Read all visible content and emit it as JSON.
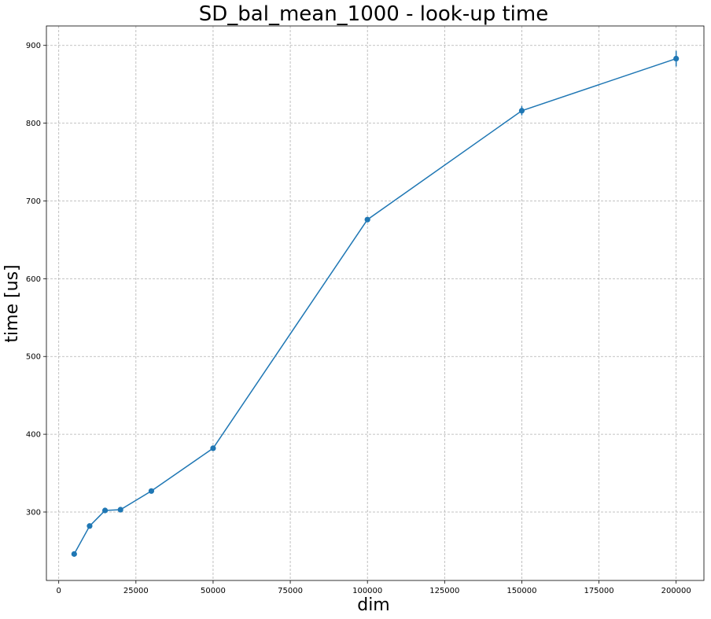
{
  "chart_data": {
    "type": "line",
    "title": "SD_bal_mean_1000 - look-up time",
    "xlabel": "dim",
    "ylabel": "time [us]",
    "xlim": [
      -4000,
      209000
    ],
    "ylim": [
      212,
      925
    ],
    "xticks": [
      0,
      25000,
      50000,
      75000,
      100000,
      125000,
      150000,
      175000,
      200000
    ],
    "yticks": [
      300,
      400,
      500,
      600,
      700,
      800,
      900
    ],
    "grid": true,
    "markers": true,
    "error_bars": true,
    "series_color": "#1f77b4",
    "series": [
      {
        "name": "",
        "x": [
          5000,
          10000,
          15000,
          20000,
          30000,
          50000,
          100000,
          150000,
          200000
        ],
        "y": [
          246,
          282,
          302,
          303,
          327,
          382,
          676,
          816,
          883
        ],
        "err": [
          2,
          2,
          2,
          2,
          2,
          2,
          3,
          6,
          10
        ]
      }
    ]
  }
}
